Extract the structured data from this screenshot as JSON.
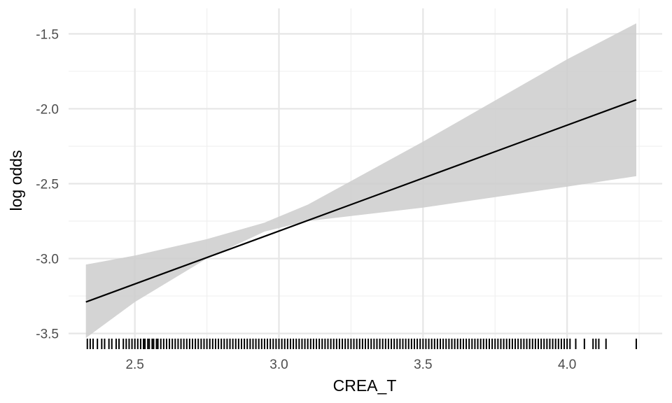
{
  "chart_data": {
    "type": "line",
    "title": "",
    "xlabel": "CREA_T",
    "ylabel": "log odds",
    "xlim": [
      2.27,
      4.33
    ],
    "ylim": [
      -3.6,
      -1.33
    ],
    "x_ticks": [
      2.5,
      3.0,
      3.5,
      4.0
    ],
    "x_tick_labels": [
      "2.5",
      "3.0",
      "3.5",
      "4.0"
    ],
    "y_ticks": [
      -3.5,
      -3.0,
      -2.5,
      -2.0,
      -1.5
    ],
    "y_tick_labels": [
      "-3.5",
      "-3.0",
      "-2.5",
      "-2.0",
      "-1.5"
    ],
    "grid": true,
    "legend": "none",
    "series": [
      {
        "x": [
          2.33,
          4.24
        ],
        "y": [
          -3.29,
          -1.94
        ],
        "color": "#000000"
      }
    ],
    "confidence_band": {
      "x": [
        2.33,
        2.5,
        2.75,
        2.95,
        3.1,
        3.5,
        4.0,
        4.24
      ],
      "lower": [
        -3.53,
        -3.29,
        -3.0,
        -2.82,
        -2.75,
        -2.66,
        -2.52,
        -2.45
      ],
      "upper": [
        -3.04,
        -2.98,
        -2.87,
        -2.76,
        -2.64,
        -2.22,
        -1.67,
        -1.43
      ],
      "color": "#cccccc"
    },
    "rug_x": [
      2.335,
      2.345,
      2.355,
      2.37,
      2.385,
      2.395,
      2.41,
      2.42,
      2.435,
      2.445,
      2.46,
      2.47,
      2.48,
      2.49,
      2.5,
      2.51,
      2.52,
      2.53,
      2.535,
      2.545,
      2.55,
      2.56,
      2.565,
      2.575,
      2.58,
      2.59,
      2.6,
      2.61,
      2.62,
      2.63,
      2.64,
      2.65,
      2.66,
      2.67,
      2.68,
      2.69,
      2.7,
      2.71,
      2.72,
      2.73,
      2.74,
      2.75,
      2.76,
      2.77,
      2.78,
      2.79,
      2.8,
      2.81,
      2.82,
      2.83,
      2.84,
      2.85,
      2.86,
      2.87,
      2.88,
      2.89,
      2.9,
      2.91,
      2.92,
      2.93,
      2.94,
      2.95,
      2.96,
      2.97,
      2.98,
      2.99,
      3.0,
      3.01,
      3.02,
      3.03,
      3.04,
      3.05,
      3.06,
      3.07,
      3.08,
      3.09,
      3.1,
      3.11,
      3.12,
      3.13,
      3.14,
      3.15,
      3.16,
      3.17,
      3.18,
      3.19,
      3.2,
      3.21,
      3.22,
      3.23,
      3.24,
      3.25,
      3.26,
      3.27,
      3.28,
      3.29,
      3.3,
      3.31,
      3.32,
      3.33,
      3.34,
      3.35,
      3.36,
      3.37,
      3.38,
      3.39,
      3.4,
      3.41,
      3.42,
      3.43,
      3.44,
      3.45,
      3.46,
      3.47,
      3.48,
      3.49,
      3.5,
      3.51,
      3.52,
      3.53,
      3.54,
      3.55,
      3.56,
      3.57,
      3.58,
      3.59,
      3.6,
      3.61,
      3.62,
      3.63,
      3.64,
      3.65,
      3.66,
      3.67,
      3.68,
      3.69,
      3.7,
      3.71,
      3.72,
      3.73,
      3.74,
      3.75,
      3.76,
      3.77,
      3.78,
      3.79,
      3.8,
      3.81,
      3.82,
      3.83,
      3.84,
      3.85,
      3.86,
      3.87,
      3.88,
      3.89,
      3.9,
      3.91,
      3.92,
      3.93,
      3.94,
      3.95,
      3.96,
      3.97,
      3.98,
      3.99,
      4.0,
      4.01,
      4.03,
      4.06,
      4.09,
      4.1,
      4.11,
      4.135,
      4.24
    ]
  }
}
